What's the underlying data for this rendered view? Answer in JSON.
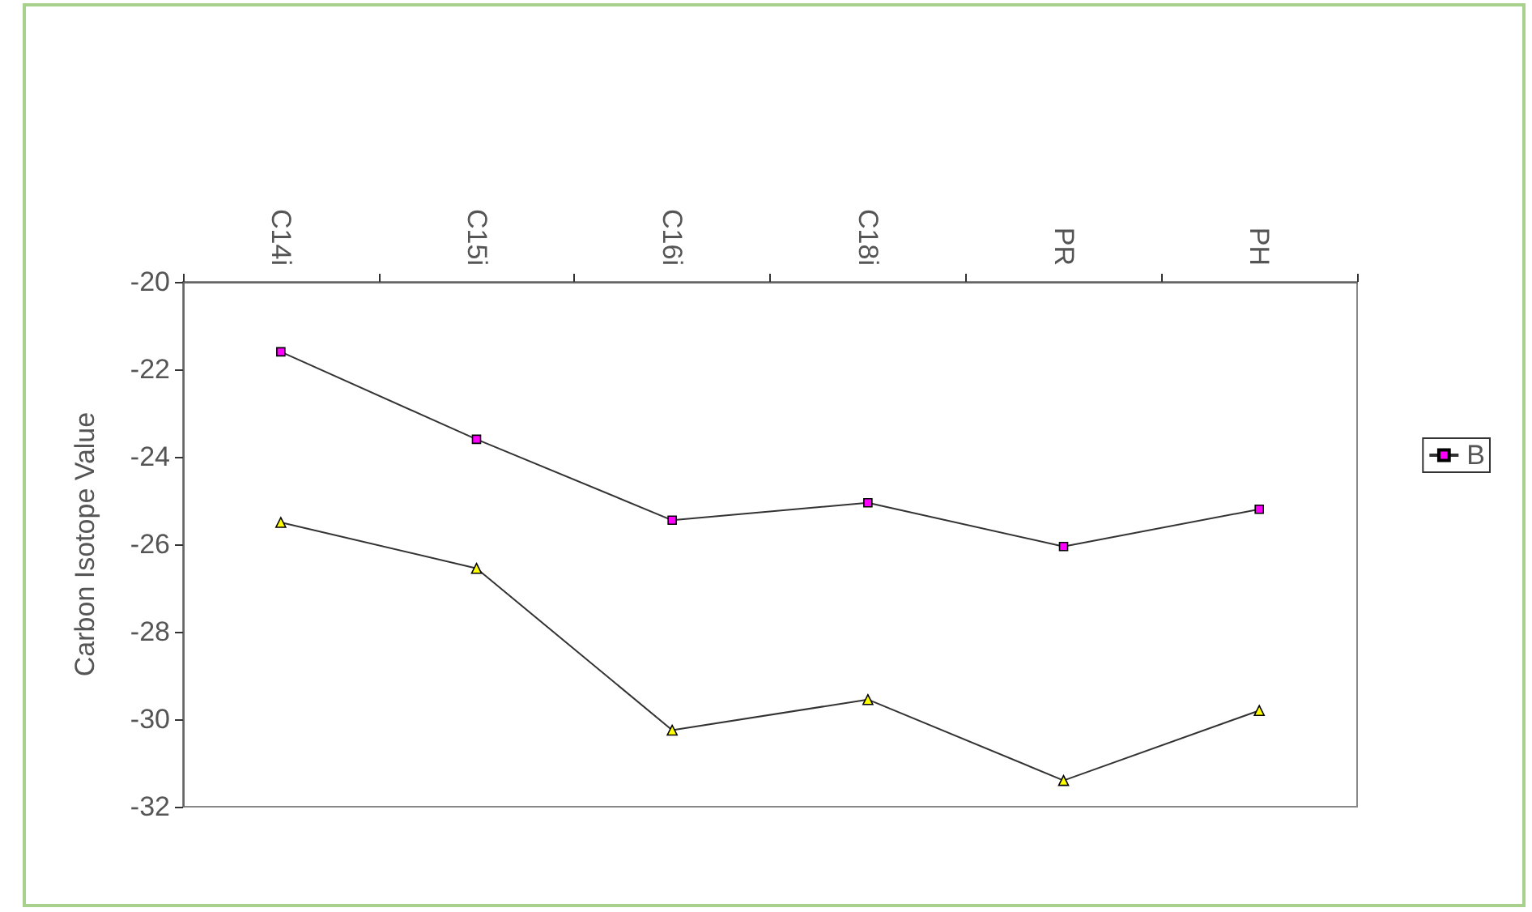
{
  "chart_data": {
    "type": "line",
    "ylabel": "Carbon Isotope Value",
    "categories": [
      "C14i",
      "C15i",
      "C16i",
      "C18i",
      "PR",
      "PH"
    ],
    "series": [
      {
        "name": "B",
        "color": "#ff00ff",
        "marker": "square",
        "values": [
          -21.6,
          -23.6,
          -25.45,
          -25.05,
          -26.05,
          -25.2
        ]
      },
      {
        "color": "#ffff00",
        "marker": "triangle",
        "values": [
          -25.5,
          -26.55,
          -30.25,
          -29.55,
          -31.4,
          -29.8
        ]
      }
    ],
    "ylim": [
      -32,
      -20
    ],
    "yticks": [
      -32,
      -30,
      -28,
      -26,
      -24,
      -22,
      -20
    ],
    "grid": false,
    "legend": "right"
  }
}
